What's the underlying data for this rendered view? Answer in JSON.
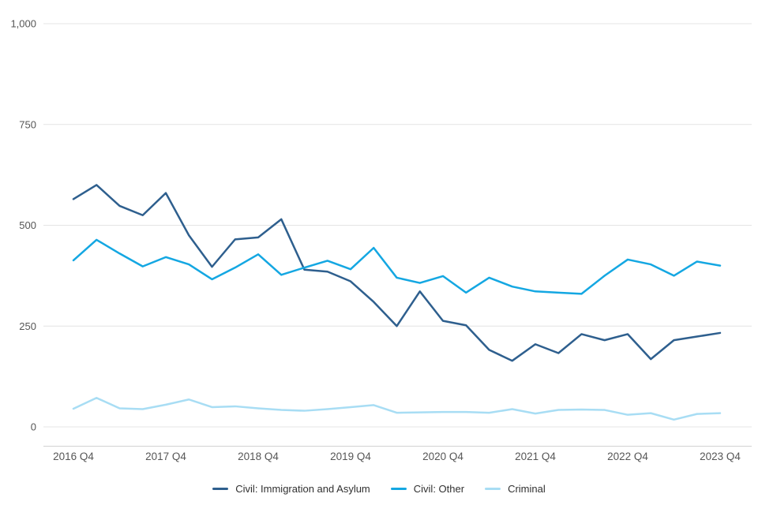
{
  "chart_data": {
    "type": "line",
    "title": "",
    "xlabel": "",
    "ylabel": "",
    "ylim": [
      0,
      1000
    ],
    "yticks": [
      {
        "value": 0,
        "label": "0"
      },
      {
        "value": 250,
        "label": "250"
      },
      {
        "value": 500,
        "label": "500"
      },
      {
        "value": 750,
        "label": "750"
      },
      {
        "value": 1000,
        "label": "1,000"
      }
    ],
    "x_ticks": [
      {
        "point_index": 0,
        "label": "2016 Q4"
      },
      {
        "point_index": 4,
        "label": "2017 Q4"
      },
      {
        "point_index": 8,
        "label": "2018 Q4"
      },
      {
        "point_index": 12,
        "label": "2019 Q4"
      },
      {
        "point_index": 16,
        "label": "2020 Q4"
      },
      {
        "point_index": 20,
        "label": "2021 Q4"
      },
      {
        "point_index": 24,
        "label": "2022 Q4"
      },
      {
        "point_index": 28,
        "label": "2023 Q4"
      }
    ],
    "n_points": 29,
    "x_unit": "quarter",
    "grid": true,
    "legend_position": "bottom",
    "colors": {
      "grid_line": "#e4e4e4",
      "axis_line": "#d2d2d2",
      "tick_text": "#565656",
      "legend_text": "#303030"
    },
    "series": [
      {
        "name": "Civil: Immigration and Asylum",
        "color": "#2e5f8e",
        "values": [
          565,
          600,
          548,
          525,
          580,
          475,
          397,
          465,
          470,
          515,
          390,
          385,
          361,
          310,
          250,
          336,
          263,
          252,
          191,
          164,
          205,
          183,
          230,
          215,
          230,
          168,
          215,
          224,
          233
        ]
      },
      {
        "name": "Civil: Other",
        "color": "#14a7e2",
        "values": [
          413,
          464,
          430,
          398,
          421,
          403,
          366,
          395,
          428,
          377,
          395,
          412,
          391,
          444,
          370,
          357,
          374,
          333,
          370,
          348,
          336,
          333,
          330,
          375,
          415,
          403,
          375,
          410,
          400
        ]
      },
      {
        "name": "Criminal",
        "color": "#a8ddf4",
        "values": [
          45,
          72,
          46,
          44,
          55,
          68,
          49,
          51,
          46,
          42,
          40,
          44,
          49,
          54,
          35,
          36,
          37,
          37,
          35,
          44,
          33,
          42,
          43,
          42,
          30,
          34,
          18,
          32,
          34
        ]
      }
    ]
  }
}
